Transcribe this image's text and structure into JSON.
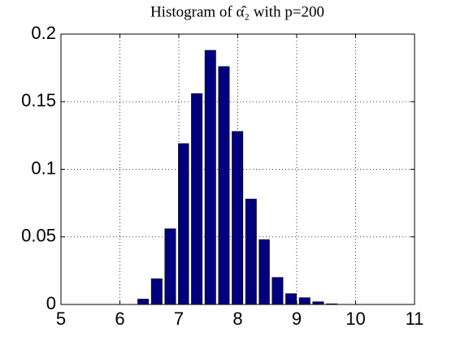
{
  "chart_data": {
    "type": "histogram",
    "title": "Histogram of α̂₂ with p=200",
    "bins": [
      6.28,
      6.51,
      6.74,
      6.97,
      7.19,
      7.42,
      7.65,
      7.88,
      8.11,
      8.34,
      8.56,
      8.79,
      9.02,
      9.25,
      9.48,
      9.71
    ],
    "values": [
      0.004,
      0.019,
      0.056,
      0.119,
      0.156,
      0.188,
      0.176,
      0.128,
      0.078,
      0.048,
      0.02,
      0.008,
      0.005,
      0.002,
      0.0005
    ],
    "color": "#00007f",
    "xlim": [
      5,
      11
    ],
    "xticks": [
      5,
      6,
      7,
      8,
      9,
      10,
      11
    ],
    "ylim": [
      0,
      0.2
    ],
    "yticks": [
      0,
      0.05,
      0.1,
      0.15,
      0.2
    ],
    "grid": true
  }
}
